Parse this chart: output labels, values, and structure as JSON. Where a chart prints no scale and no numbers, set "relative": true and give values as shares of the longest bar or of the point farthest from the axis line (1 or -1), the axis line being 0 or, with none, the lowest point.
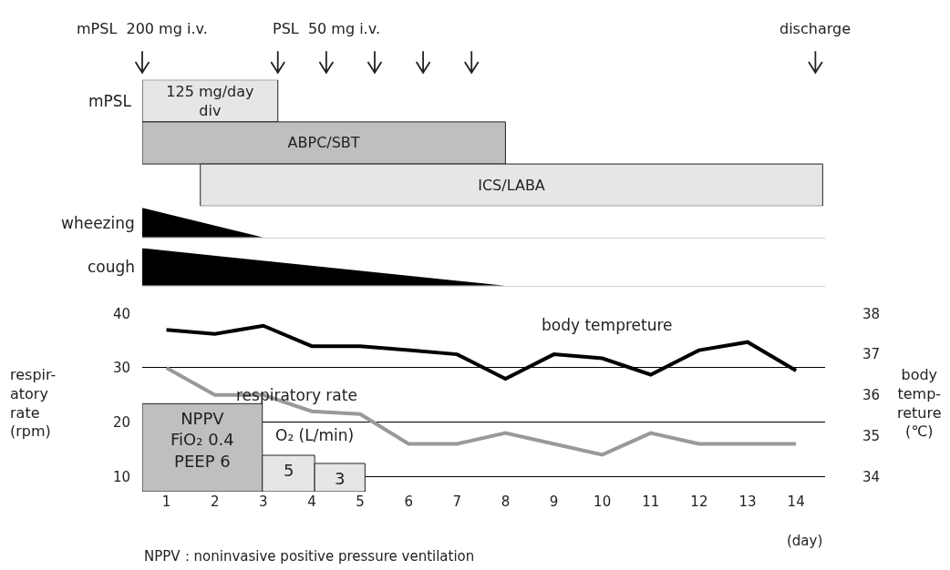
{
  "chart_data": [
    {
      "type": "bar",
      "orientation": "horizontal",
      "categories": [
        "125 mg/day\ndiv",
        "ABPC/SBT",
        "ICS/LABA"
      ],
      "base": [
        0.5,
        0.5,
        1.7
      ],
      "values": [
        2.8,
        7.5,
        12.85
      ],
      "colors": [
        "#e6e6e6",
        "#bfbfbf",
        "#e6e6e6"
      ],
      "ylabel": "mPSL",
      "tick_labels": false,
      "xlim": [
        0.5,
        14.6
      ],
      "annotations": [
        "mPSL  200 mg i.v.",
        "PSL  50 mg i.v.",
        "discharge"
      ]
    },
    {
      "type": "area",
      "relative": true,
      "tick_labels": false,
      "xlim": [
        0.5,
        14.6
      ],
      "series": [
        {
          "name": "wheezing",
          "color": "#000000",
          "x": [
            0.5,
            3.0
          ],
          "values": [
            1,
            0
          ]
        }
      ]
    },
    {
      "type": "area",
      "relative": true,
      "tick_labels": false,
      "xlim": [
        0.5,
        14.6
      ],
      "series": [
        {
          "name": "cough",
          "color": "#000000",
          "x": [
            0.5,
            8.0
          ],
          "values": [
            1,
            0
          ]
        }
      ]
    },
    {
      "type": "line",
      "x": [
        1,
        2,
        3,
        4,
        5,
        6,
        7,
        8,
        9,
        10,
        11,
        12,
        13,
        14
      ],
      "series": [
        {
          "name": "body tempreture",
          "color": "#000000",
          "axis": "y2",
          "values": [
            37.6,
            37.5,
            37.7,
            37.2,
            37.2,
            37.1,
            37.0,
            36.4,
            37.0,
            36.9,
            36.5,
            37.1,
            37.3,
            36.6
          ]
        },
        {
          "name": "respiratory rate",
          "color": "#999999",
          "values": [
            30,
            25,
            25,
            22,
            21.5,
            16,
            16,
            18,
            16,
            14,
            18,
            16,
            16,
            16
          ]
        },
        {
          "name": "O₂ (L/min)",
          "type": "bar",
          "x": [
            1.74,
            3.52,
            4.58
          ],
          "base": [
            7.2,
            7.2,
            7.2
          ],
          "values": [
            16.2,
            6.7,
            5.2
          ],
          "colors": [
            "#bfbfbf",
            "#e6e6e6",
            "#e6e6e6"
          ]
        }
      ],
      "xlabel": "(day)",
      "ylabel": "respir-\natory\nrate\n(rpm)",
      "y2label": "body\ntemp-\nreture\n(℃)",
      "xlim": [
        0.5,
        14.6
      ],
      "xticks": [
        1,
        2,
        3,
        4,
        5,
        6,
        7,
        8,
        9,
        10,
        11,
        12,
        13,
        14
      ],
      "ylim": [
        7.2,
        40
      ],
      "yticks": [
        10,
        20,
        30,
        40
      ],
      "y2lim": [
        33.63,
        38
      ],
      "y2ticks": [
        34,
        35,
        36,
        37,
        38
      ],
      "grid": "y",
      "annotations": [
        {
          "text": "NPPV\nFiO₂ 0.4\nPEEP 6",
          "x": 1.74,
          "y": 23.4
        },
        {
          "text": "5",
          "x": 3.52,
          "y": 13.9
        },
        {
          "text": "3",
          "x": 4.58,
          "y": 12.4
        },
        "NPPV：noninvasive positive pressure ventilation"
      ]
    }
  ]
}
